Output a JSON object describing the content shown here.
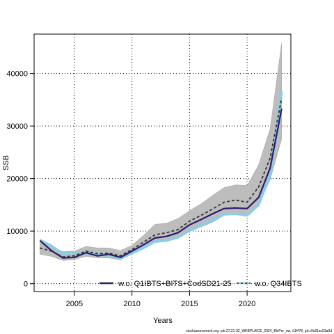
{
  "chart_data": {
    "type": "line",
    "xlabel": "Years",
    "ylabel": "SSB",
    "xlim": [
      2001.5,
      2023.8
    ],
    "ylim": [
      -1500,
      47500
    ],
    "xticks": [
      2005,
      2010,
      2015,
      2020
    ],
    "yticks": [
      0,
      10000,
      20000,
      30000,
      40000
    ],
    "grid": true,
    "legend_position": "bottom",
    "colors": {
      "band": "#bdbdbd",
      "series_1": "#2b1a6e",
      "series_2": "#87ceeb",
      "series_3": "#333333"
    },
    "band": {
      "x": [
        2002,
        2003,
        2004,
        2005,
        2006,
        2007,
        2008,
        2009,
        2010,
        2011,
        2012,
        2013,
        2014,
        2015,
        2016,
        2017,
        2018,
        2019,
        2020,
        2021,
        2022,
        2023
      ],
      "lower": [
        5600,
        5200,
        4400,
        4600,
        5200,
        4900,
        4900,
        4500,
        5800,
        6900,
        7900,
        8300,
        8900,
        9900,
        10800,
        11700,
        13000,
        13200,
        12800,
        15000,
        19800,
        27500
      ],
      "upper": [
        7800,
        7100,
        6100,
        6200,
        7100,
        6800,
        6800,
        6300,
        7300,
        9200,
        11300,
        11500,
        12400,
        13900,
        15200,
        16800,
        18300,
        18800,
        18700,
        22600,
        29500,
        45800
      ]
    },
    "series": [
      {
        "name": "w.o. Q1IBTS+BITS+CodSD21-25",
        "style": "solid",
        "x": [
          2002,
          2003,
          2004,
          2005,
          2006,
          2007,
          2008,
          2009,
          2010,
          2011,
          2012,
          2013,
          2014,
          2015,
          2016,
          2017,
          2018,
          2019,
          2020,
          2021,
          2022,
          2023
        ],
        "values": [
          8200,
          6300,
          4900,
          5000,
          5900,
          5300,
          5600,
          5000,
          6200,
          7400,
          8700,
          9000,
          9700,
          11200,
          12200,
          13300,
          14300,
          14400,
          14300,
          16400,
          22000,
          33300
        ]
      },
      {
        "name": "w.o. Q34IBTS",
        "style": "solid",
        "x": [
          2002,
          2003,
          2004,
          2005,
          2006,
          2007,
          2008,
          2009,
          2010,
          2011,
          2012,
          2013,
          2014,
          2015,
          2016,
          2017,
          2018,
          2019,
          2020,
          2021,
          2022,
          2023
        ],
        "values": [
          8300,
          7200,
          5700,
          5900,
          6000,
          5500,
          5400,
          4800,
          5800,
          6800,
          8000,
          8200,
          8800,
          10100,
          11100,
          12100,
          13200,
          13300,
          13000,
          15000,
          20700,
          36600
        ]
      },
      {
        "name": "",
        "style": "dashed",
        "x": [
          2002,
          2003,
          2004,
          2005,
          2006,
          2007,
          2008,
          2009,
          2010,
          2011,
          2012,
          2013,
          2014,
          2015,
          2016,
          2017,
          2018,
          2019,
          2020,
          2021,
          2022,
          2023
        ],
        "values": [
          6800,
          6200,
          5100,
          5300,
          6200,
          5700,
          5800,
          5300,
          6500,
          7900,
          9300,
          9700,
          10300,
          11900,
          13000,
          14200,
          15500,
          15900,
          15500,
          18400,
          23900,
          35300
        ]
      }
    ],
    "footer": "stockassessment.org, ple.27.21-32_WKBPLAICE_2024_BlcPer_sw, r18478, git:c9c81ac53a0d"
  }
}
